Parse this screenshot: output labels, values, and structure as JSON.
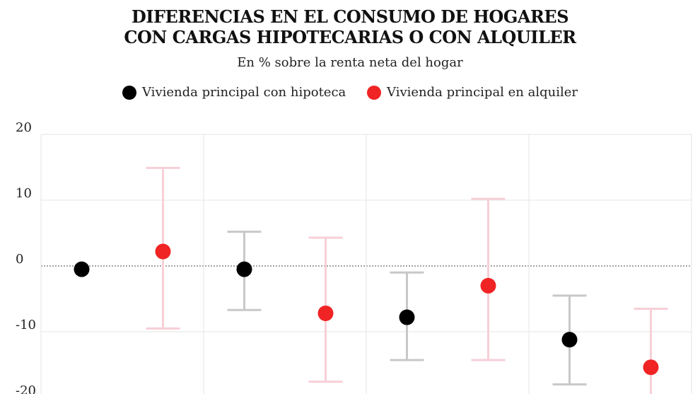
{
  "title_lines": [
    "DIFERENCIAS EN EL CONSUMO DE HOGARES",
    "CON CARGAS HIPOTECARIAS O CON ALQUILER"
  ],
  "subtitle": "En % sobre la renta neta del hogar",
  "legend": [
    {
      "label": "Vivienda principal con hipoteca",
      "color": "#000000"
    },
    {
      "label": "Vivienda principal en alquiler",
      "color": "#f02424"
    }
  ],
  "chart_data": {
    "type": "scatter",
    "title": "DIFERENCIAS EN EL CONSUMO DE HOGARES CON CARGAS HIPOTECARIAS O CON ALQUILER",
    "subtitle": "En % sobre la renta neta del hogar",
    "ylim": [
      -20,
      20
    ],
    "yticks": [
      20,
      10,
      0,
      -10,
      -20
    ],
    "grid": true,
    "legend_position": "top-center",
    "group_count": 4,
    "series": [
      {
        "name": "Vivienda principal con hipoteca",
        "color": "#000000",
        "error_color": "#c8c8c8",
        "points": [
          {
            "group": 1,
            "value": -0.5,
            "low": null,
            "high": null
          },
          {
            "group": 2,
            "value": -0.5,
            "low": -6.7,
            "high": 5.2
          },
          {
            "group": 3,
            "value": -7.8,
            "low": -14.3,
            "high": -1.0
          },
          {
            "group": 4,
            "value": -11.2,
            "low": -18.0,
            "high": -4.5
          }
        ]
      },
      {
        "name": "Vivienda principal en alquiler",
        "color": "#f02424",
        "error_color": "#f7cfd7",
        "points": [
          {
            "group": 1,
            "value": 2.2,
            "low": -9.5,
            "high": 14.9
          },
          {
            "group": 2,
            "value": -7.2,
            "low": -17.6,
            "high": 4.3
          },
          {
            "group": 3,
            "value": -3.0,
            "low": -14.3,
            "high": 10.2
          },
          {
            "group": 4,
            "value": -15.4,
            "low": -22.0,
            "high": -6.5
          }
        ]
      }
    ]
  }
}
